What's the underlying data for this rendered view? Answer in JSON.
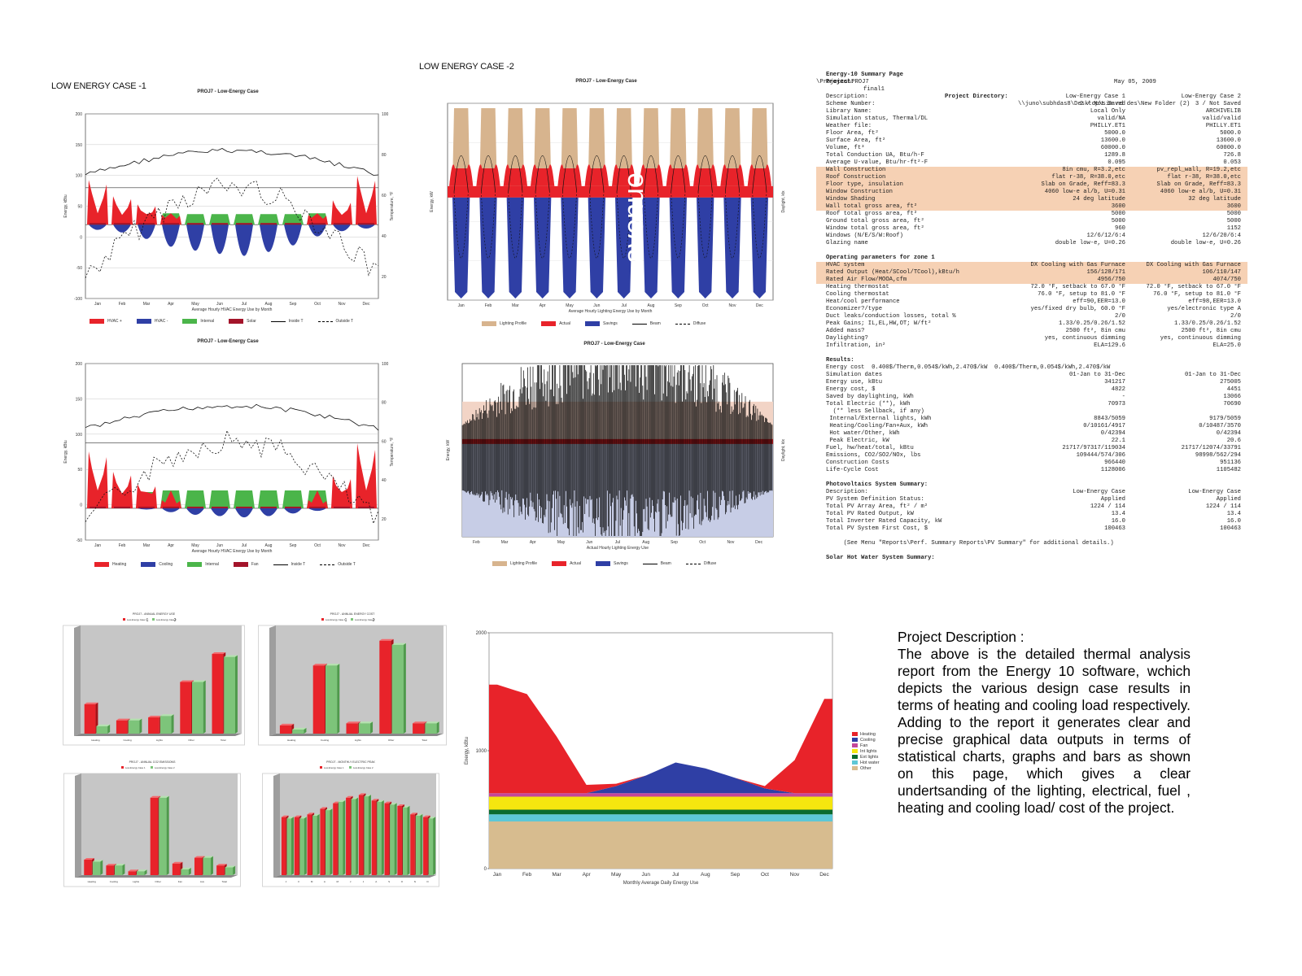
{
  "case1": {
    "title": "LOW ENERGY CASE -1",
    "chart1": {
      "title": "PROJ7 - Low-Energy Case",
      "xlabel": "Average Hourly HVAC Energy Use by Month",
      "ylabel": "Energy, kBtu",
      "y2label": "Temperature, °F",
      "months": [
        "Jan",
        "Feb",
        "Mar",
        "Apr",
        "May",
        "Jun",
        "Jul",
        "Aug",
        "Sep",
        "Oct",
        "Nov",
        "Dec"
      ],
      "yticks": [
        "200",
        "150",
        "100",
        "50",
        "0",
        "-50",
        "-100"
      ],
      "y2ticks": [
        "100",
        "80",
        "60",
        "40",
        "20"
      ],
      "legend": [
        "HVAC +",
        "HVAC -",
        "Internal",
        "Solar",
        "Inside T",
        "Outside T"
      ]
    },
    "chart2": {
      "title": "PROJ7 - Low-Energy Case",
      "xlabel": "Average Hourly HVAC Energy Use by Month",
      "ylabel": "Energy, kBtu",
      "y2label": "Temperature, °F",
      "months": [
        "Jan",
        "Feb",
        "Mar",
        "Apr",
        "May",
        "Jun",
        "Jul",
        "Aug",
        "Sep",
        "Oct",
        "Nov",
        "Dec"
      ],
      "yticks": [
        "200",
        "150",
        "100",
        "50",
        "0",
        "-50"
      ],
      "y2ticks": [
        "100",
        "80",
        "60",
        "40",
        "20"
      ],
      "legend": [
        "Heating",
        "Cooling",
        "Internal",
        "Fan",
        "Inside T",
        "Outside T"
      ]
    }
  },
  "case2": {
    "title": "LOW ENERGY CASE -2",
    "chart1": {
      "title": "PROJ7 - Low-Energy Case",
      "xlabel": "Average Hourly Lighting Energy Use by Month",
      "ylabel": "Energy, kW",
      "y2label": "Daylight, klx",
      "months": [
        "Jan",
        "Feb",
        "Mar",
        "Apr",
        "May",
        "Jun",
        "Jul",
        "Aug",
        "Sep",
        "Oct",
        "Nov",
        "Dec"
      ],
      "legend": [
        "Lighting Profile",
        "Actual",
        "Savings",
        "Beam",
        "Diffuse"
      ],
      "watermark": "avenue"
    },
    "chart2": {
      "title": "PROJ7 - Low-Energy Case",
      "xlabel": "Actual Hourly Lighting Energy Use",
      "ylabel": "Energy, kW",
      "y2label": "Daylight, klx",
      "months": [
        "Feb",
        "Mar",
        "Apr",
        "May",
        "Jun",
        "Jul",
        "Aug",
        "Sep",
        "Oct",
        "Nov",
        "Dec"
      ],
      "legend": [
        "Lighting Profile",
        "Actual",
        "Savings",
        "Beam",
        "Diffuse"
      ]
    }
  },
  "report": {
    "header_left": "Energy-10 Summary Page",
    "header_date": "May 05, 2009",
    "project_label": "Project:",
    "project_value": "final1",
    "dir_label": "Project Directory:",
    "dir_value": "\\\\juno\\subhdas8\\Desktop\\sim nd des\\New Folder (2)",
    "dir_value2": "\\Projects\\PROJ7",
    "block1": [
      [
        "Description:",
        "Low-Energy Case 1",
        "Low-Energy Case 2"
      ],
      [
        "Scheme Number:",
        "2 / Not Saved",
        "3 / Not Saved"
      ],
      [
        "Library Name:",
        "Local Only",
        "ARCHIVELIB"
      ],
      [
        "Simulation status, Thermal/DL",
        "valid/NA",
        "valid/valid"
      ],
      [
        "Weather file:",
        "PHILLY.ET1",
        "PHILLY.ET1"
      ],
      [
        "Floor Area, ft²",
        "5000.0",
        "5000.0"
      ],
      [
        "Surface Area, ft²",
        "13600.0",
        "13600.0"
      ],
      [
        "Volume, ft³",
        "60000.0",
        "60000.0"
      ],
      [
        "Total Conduction UA, Btu/h-F",
        "1289.8",
        "726.8"
      ],
      [
        "Average U-value, Btu/hr-ft²-F",
        "0.095",
        "0.053"
      ]
    ],
    "block1_hl": [
      [
        "Wall Construction",
        "8in cmu, R=3.2,etc",
        "pv_repl_wall, R=19.2,etc"
      ],
      [
        "Roof Construction",
        "flat r-38, R=38.0,etc",
        "flat r-38, R=38.0,etc"
      ],
      [
        "Floor type, insulation",
        "Slab on Grade, Reff=83.3",
        "Slab on Grade, Reff=83.3"
      ],
      [
        "Window Construction",
        "4060 low-e al/b, U=0.31",
        "4060 low-e al/b, U=0.31"
      ],
      [
        "Window Shading",
        "24 deg latitude",
        "32 deg latitude"
      ],
      [
        "Wall total gross area, ft²",
        "3600",
        "3600"
      ]
    ],
    "block1b": [
      [
        "Roof total gross area, ft²",
        "5000",
        "5000"
      ],
      [
        "Ground total gross area, ft²",
        "5000",
        "5000"
      ],
      [
        "Window total gross area, ft²",
        "960",
        "1152"
      ],
      [
        "Windows (N/E/S/W:Roof)",
        "12/6/12/6:4",
        "12/6/20/6:4"
      ],
      [
        "Glazing name",
        "double low-e, U=0.26",
        "double low-e, U=0.26"
      ]
    ],
    "op_title": "Operating parameters for zone 1",
    "op_hl": [
      [
        "HVAC system",
        "DX Cooling with Gas Furnace",
        "DX Cooling with Gas Furnace"
      ],
      [
        "Rated Output (Heat/SCool/TCool),kBtu/h",
        "156/128/171",
        "106/110/147"
      ],
      [
        "Rated Air Flow/MOOA,cfm",
        "4956/750",
        "4074/750"
      ]
    ],
    "op": [
      [
        "Heating thermostat",
        "72.0 °F, setback to 67.0 °F",
        "72.0 °F, setback to 67.0 °F"
      ],
      [
        "Cooling thermostat",
        "76.0 °F, setup to 81.0 °F",
        "76.0 °F, setup to 81.0 °F"
      ],
      [
        "Heat/cool performance",
        "eff=90,EER=13.0",
        "eff=98,EER=13.0"
      ],
      [
        "Economizer?/type",
        "yes/fixed dry bulb, 60.0 °F",
        "yes/electronic type A"
      ],
      [
        "Duct leaks/conduction losses, total %",
        "2/0",
        "2/0"
      ],
      [
        "Peak Gains; IL,EL,HW,OT; W/ft²",
        "1.33/0.25/0.26/1.52",
        "1.33/0.25/0.26/1.52"
      ],
      [
        "Added mass?",
        "2500 ft², 8in cmu",
        "2500 ft², 8in cmu"
      ],
      [
        "Daylighting?",
        "yes, continuous dimming",
        "yes, continuous dimming"
      ],
      [
        "Infiltration, in²",
        "ELA=129.6",
        "ELA=25.0"
      ]
    ],
    "res_title": "Results:",
    "res_energy_cost": "Energy cost  0.400$/Therm,0.054$/kWh,2.470$/kW  0.400$/Therm,0.054$/kWh,2.470$/kW",
    "res": [
      [
        "Simulation dates",
        "01-Jan to 31-Dec",
        "01-Jan to 31-Dec"
      ],
      [
        "Energy use, kBtu",
        "341217",
        "275005"
      ],
      [
        "Energy cost, $",
        "4822",
        "4451"
      ],
      [
        "Saved by daylighting, kWh",
        "-",
        "13066"
      ],
      [
        "Total Electric (**), kWh",
        "70973",
        "70690"
      ],
      [
        "  (** less Sellback, if any)",
        "",
        ""
      ],
      [
        " Internal/External lights, kWh",
        "8843/5059",
        "9179/5059"
      ],
      [
        " Heating/Cooling/Fan+Aux, kWh",
        "0/10161/4917",
        "0/10487/3570"
      ],
      [
        " Hot water/Other, kWh",
        "0/42394",
        "0/42394"
      ],
      [
        " Peak Electric, kW",
        "22.1",
        "20.6"
      ],
      [
        "Fuel, hw/heat/total, kBtu",
        "21717/97317/119034",
        "21717/12074/33791"
      ],
      [
        "Emissions, CO2/SO2/NOx, lbs",
        "109444/574/306",
        "98998/562/294"
      ],
      [
        "Construction Costs",
        "966440",
        "951136"
      ],
      [
        "Life-Cycle Cost",
        "1128006",
        "1105482"
      ]
    ],
    "pv_title": "Photovoltaics System Summary:",
    "pv": [
      [
        "Description:",
        "Low-Energy Case",
        "Low-Energy Case"
      ],
      [
        "PV System Definition Status:",
        "Applied",
        "Applied"
      ],
      [
        "Total PV Array Area, ft² / m²",
        "1224 / 114",
        "1224 / 114"
      ],
      [
        "Total PV Rated Output, kW",
        "13.4",
        "13.4"
      ],
      [
        "Total Inverter Rated Capacity, kW",
        "16.0",
        "16.0"
      ],
      [
        "Total PV System First Cost, $",
        "100463",
        "100463"
      ]
    ],
    "pv_note": "(See Menu \"Reports\\Perf. Summary Reports\\PV Summary\" for additional details.)",
    "shw_title": "Solar Hot Water System Summary:"
  },
  "bars": {
    "legend": [
      "Low-Energy Case 1",
      "Low-Energy Case 2"
    ],
    "charts": [
      {
        "title": "PROJ7 - ANNUAL ENERGY USE",
        "legend_nums": [
          "1",
          "2"
        ],
        "cats": [
          "Heating",
          "Cooling",
          "Lights",
          "Other",
          "Total"
        ],
        "series1": [
          20,
          9,
          11,
          35,
          54
        ],
        "series2": [
          5,
          9,
          12,
          35,
          52
        ],
        "ymax": 70
      },
      {
        "title": "PROJ7 - ANNUAL ENERGY COST",
        "legend_nums": [
          "1",
          "2"
        ],
        "cats": [
          "Heating",
          "Cooling",
          "Lights",
          "Other",
          "Total"
        ],
        "series1": [
          8,
          66,
          10,
          90,
          10
        ],
        "series2": [
          4,
          66,
          10,
          86,
          10
        ],
        "ymax": 100
      },
      {
        "title": "PROJ7 - ANNUAL CO2 EMISSIONS",
        "legend_nums": [],
        "cats": [
          "Heating",
          "Cooling",
          "Lights",
          "Other",
          "Fan",
          "Aux",
          "Total"
        ],
        "series1": [
          8,
          5,
          2,
          40,
          6,
          9,
          5
        ],
        "series2": [
          7,
          5,
          2,
          40,
          3,
          9,
          4
        ],
        "ymax": 50
      },
      {
        "title": "PROJ7 - MONTHLY ELECTRIC PEAK",
        "legend_nums": [],
        "cats": [
          "J",
          "F",
          "M",
          "A",
          "M",
          "J",
          "J",
          "A",
          "S",
          "O",
          "N",
          "D"
        ],
        "series1": [
          42,
          42,
          44,
          48,
          52,
          56,
          58,
          54,
          52,
          50,
          44,
          42
        ],
        "series2": [
          41,
          41,
          43,
          47,
          53,
          55,
          57,
          53,
          51,
          49,
          43,
          41
        ],
        "ymax": 70
      }
    ]
  },
  "area_chart": {
    "title": "",
    "xlabel": "Monthly Average Daily Energy Use",
    "ylabel": "Energy, kBtu",
    "yticks": [
      "2000",
      "1000",
      "0"
    ],
    "months": [
      "Jan",
      "Feb",
      "Mar",
      "Apr",
      "May",
      "Jun",
      "Jul",
      "Aug",
      "Sep",
      "Oct",
      "Nov",
      "Dec"
    ],
    "legend": [
      "Heating",
      "Cooling",
      "Fan",
      "Int lights",
      "Ext lights",
      "Hot water",
      "Other"
    ],
    "colors": [
      "#e8232a",
      "#2f3fa5",
      "#c4479a",
      "#f5e60f",
      "#0b6b2e",
      "#5dc7d6",
      "#d7bc8f"
    ]
  },
  "chart_data": {
    "type": "area",
    "x": [
      "Jan",
      "Feb",
      "Mar",
      "Apr",
      "May",
      "Jun",
      "Jul",
      "Aug",
      "Sep",
      "Oct",
      "Nov",
      "Dec"
    ],
    "xlabel": "Monthly Average Daily Energy Use",
    "ylabel": "Energy, kBtu",
    "ylim": [
      0,
      2000
    ],
    "series": [
      {
        "name": "Other",
        "values": [
          400,
          400,
          400,
          400,
          400,
          400,
          400,
          400,
          400,
          400,
          400,
          400
        ]
      },
      {
        "name": "Hot water",
        "values": [
          60,
          60,
          60,
          60,
          60,
          60,
          60,
          60,
          60,
          60,
          60,
          60
        ]
      },
      {
        "name": "Ext lights",
        "values": [
          40,
          40,
          40,
          40,
          40,
          40,
          40,
          40,
          40,
          40,
          40,
          40
        ]
      },
      {
        "name": "Int lights",
        "values": [
          110,
          110,
          110,
          110,
          110,
          110,
          110,
          110,
          110,
          110,
          110,
          110
        ]
      },
      {
        "name": "Fan",
        "values": [
          30,
          30,
          30,
          30,
          30,
          30,
          30,
          30,
          30,
          30,
          30,
          30
        ]
      },
      {
        "name": "Cooling",
        "values": [
          0,
          0,
          0,
          0,
          60,
          150,
          260,
          210,
          130,
          40,
          0,
          0
        ]
      },
      {
        "name": "Heating",
        "values": [
          920,
          840,
          480,
          70,
          20,
          0,
          0,
          0,
          0,
          20,
          280,
          800
        ]
      }
    ]
  },
  "description": {
    "heading": "Project Description :",
    "body": "The above is the detailed thermal analysis report from the Energy 10 software, wchich depicts the various design case results in terms of heating and cooling load respectively. Adding to the report it generates clear and precise graphical data outputs in terms of statistical charts, graphs and bars as shown on this page, which gives a clear undertsanding of the lighting, electrical, fuel , heating and cooling load/ cost of the project."
  }
}
